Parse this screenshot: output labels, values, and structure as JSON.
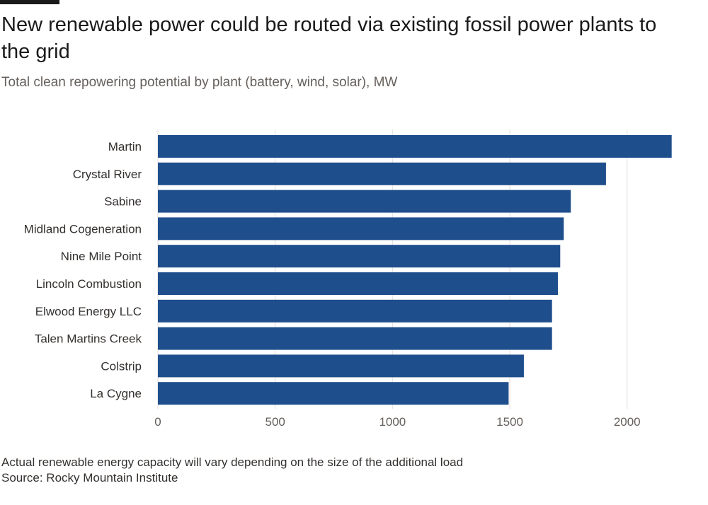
{
  "header": {
    "title": "New renewable power could be routed via existing fossil power plants to the grid",
    "subtitle": "Total clean repowering potential by plant (battery, wind, solar), MW"
  },
  "footer": {
    "note": "Actual renewable energy capacity will vary depending on the size of the additional load",
    "source": "Source: Rocky Mountain Institute"
  },
  "chart_data": {
    "type": "bar",
    "orientation": "horizontal",
    "title": "New renewable power could be routed via existing fossil power plants to the grid",
    "subtitle": "Total clean repowering potential by plant (battery, wind, solar), MW",
    "categories": [
      "Martin",
      "Crystal River",
      "Sabine",
      "Midland Cogeneration",
      "Nine Mile Point",
      "Lincoln Combustion",
      "Elwood Energy LLC",
      "Talen Martins Creek",
      "Colstrip",
      "La Cygne"
    ],
    "values": [
      2190,
      1910,
      1760,
      1730,
      1715,
      1705,
      1680,
      1680,
      1560,
      1495
    ],
    "xlabel": "",
    "ylabel": "",
    "xlim": [
      0,
      2200
    ],
    "xticks": [
      0,
      500,
      1000,
      1500,
      2000
    ],
    "grid": true,
    "legend": "none",
    "bar_color": "#1f4e8c"
  }
}
